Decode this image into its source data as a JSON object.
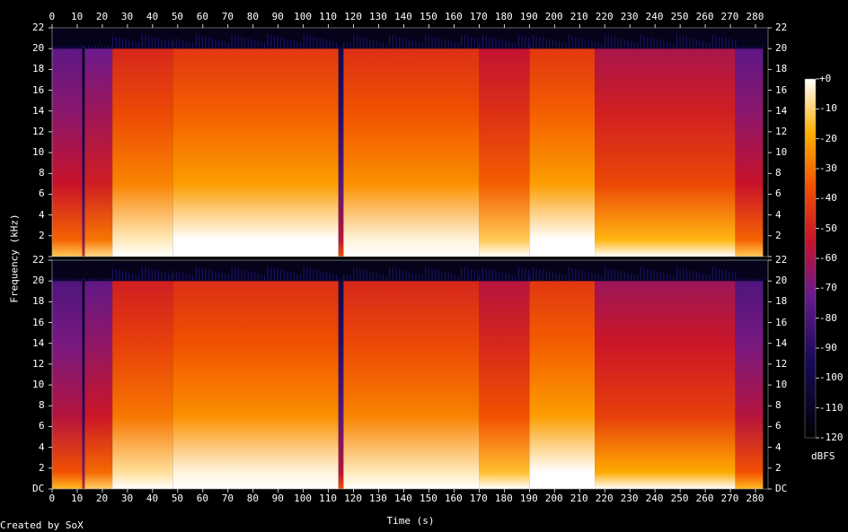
{
  "credit": "Created by SoX",
  "colors": {
    "background": "#000000",
    "low": "#000000",
    "mid_low": "#3c1c8e",
    "mid": "#c8122a",
    "mid_high": "#f25000",
    "high": "#fff4b0",
    "max": "#ffffff"
  },
  "chart_data": {
    "type": "heatmap",
    "xlabel": "Time (s)",
    "ylabel": "Frequency (kHz)",
    "colorbar_label": "dBFS",
    "x_ticks": [
      "0",
      "10",
      "20",
      "30",
      "40",
      "50",
      "60",
      "70",
      "80",
      "90",
      "100",
      "110",
      "120",
      "130",
      "140",
      "150",
      "160",
      "170",
      "180",
      "190",
      "200",
      "210",
      "220",
      "230",
      "240",
      "250",
      "260",
      "270",
      "280"
    ],
    "y_ticks": [
      "DC",
      "2",
      "4",
      "6",
      "8",
      "10",
      "12",
      "14",
      "16",
      "18",
      "20",
      "22"
    ],
    "xlim": [
      0,
      285
    ],
    "ylim": [
      0,
      22
    ],
    "colorbar_ticks": [
      "+0",
      "-10",
      "-20",
      "-30",
      "-40",
      "-50",
      "-60",
      "-70",
      "-80",
      "-90",
      "-100",
      "-110",
      "-120"
    ],
    "colorbar_range": [
      -120,
      0
    ],
    "channels": [
      {
        "name": "",
        "content_top_khz": 20,
        "segments": [
          {
            "start": 0,
            "end": 12,
            "intensity": 0.55
          },
          {
            "start": 12,
            "end": 13,
            "intensity": 0.25
          },
          {
            "start": 13,
            "end": 24,
            "intensity": 0.58
          },
          {
            "start": 24,
            "end": 48,
            "intensity": 0.78
          },
          {
            "start": 48,
            "end": 114,
            "intensity": 0.82
          },
          {
            "start": 114,
            "end": 116,
            "intensity": 0.35
          },
          {
            "start": 116,
            "end": 170,
            "intensity": 0.8
          },
          {
            "start": 170,
            "end": 190,
            "intensity": 0.72
          },
          {
            "start": 190,
            "end": 216,
            "intensity": 0.82
          },
          {
            "start": 216,
            "end": 272,
            "intensity": 0.68
          },
          {
            "start": 272,
            "end": 283,
            "intensity": 0.55
          }
        ]
      },
      {
        "name": "",
        "content_top_khz": 20,
        "segments": [
          {
            "start": 0,
            "end": 12,
            "intensity": 0.52
          },
          {
            "start": 12,
            "end": 13,
            "intensity": 0.25
          },
          {
            "start": 13,
            "end": 24,
            "intensity": 0.56
          },
          {
            "start": 24,
            "end": 48,
            "intensity": 0.76
          },
          {
            "start": 48,
            "end": 114,
            "intensity": 0.8
          },
          {
            "start": 114,
            "end": 116,
            "intensity": 0.35
          },
          {
            "start": 116,
            "end": 170,
            "intensity": 0.78
          },
          {
            "start": 170,
            "end": 190,
            "intensity": 0.7
          },
          {
            "start": 190,
            "end": 216,
            "intensity": 0.82
          },
          {
            "start": 216,
            "end": 272,
            "intensity": 0.66
          },
          {
            "start": 272,
            "end": 283,
            "intensity": 0.52
          }
        ]
      }
    ]
  }
}
